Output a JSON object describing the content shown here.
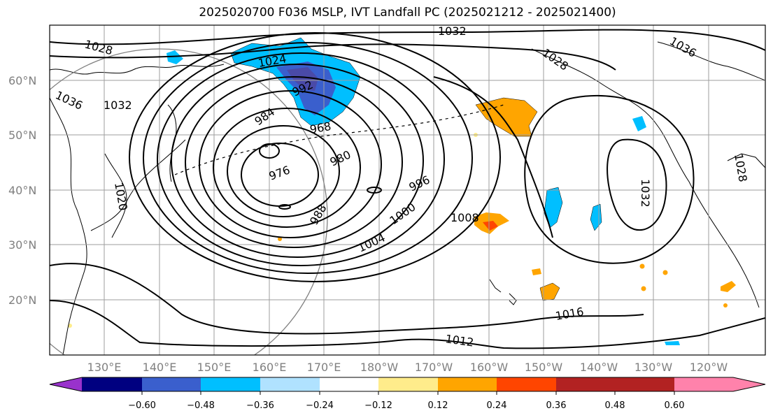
{
  "title": "2025020700 F036 MSLP, IVT Landfall PC (2025021212 - 2025021400)",
  "lat_labels": [
    "60°N",
    "50°N",
    "40°N",
    "30°N",
    "20°N"
  ],
  "lon_labels": [
    "130°E",
    "140°E",
    "150°E",
    "160°E",
    "170°E",
    "180°W",
    "170°W",
    "160°W",
    "150°W",
    "140°W",
    "130°W",
    "120°W"
  ],
  "contour_labels": [
    "1032",
    "1036",
    "1028",
    "1028",
    "1024",
    "992",
    "984",
    "968",
    "1036",
    "1032",
    "980",
    "976",
    "996",
    "1000",
    "988",
    "1004",
    "1008",
    "1032",
    "1020",
    "1016",
    "1012",
    "1028"
  ],
  "colorbar": {
    "colors": [
      "#9932cc",
      "#000080",
      "#3a5fcd",
      "#00bfff",
      "#b0e2ff",
      "#ffffff",
      "#ffec8b",
      "#ffa500",
      "#ff4500",
      "#b22222",
      "#ff82ab"
    ],
    "tick_labels": [
      "−0.60",
      "−0.48",
      "−0.36",
      "−0.24",
      "−0.12",
      "0.12",
      "0.24",
      "0.36",
      "0.48",
      "0.60"
    ]
  }
}
